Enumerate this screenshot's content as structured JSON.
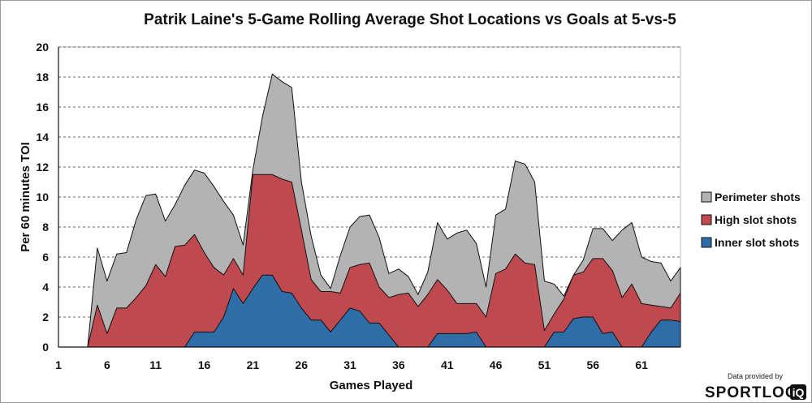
{
  "chart_data": {
    "type": "area",
    "title": "Patrik Laine's 5-Game Rolling Average Shot Locations vs Goals at 5-vs-5",
    "xlabel": "Games Played",
    "ylabel": "Per 60 minutes TOI",
    "ylim": [
      0,
      20
    ],
    "yticks": [
      0,
      2,
      4,
      6,
      8,
      10,
      12,
      14,
      16,
      18,
      20
    ],
    "xlim": [
      1,
      65
    ],
    "xticks": [
      1,
      6,
      11,
      16,
      21,
      26,
      31,
      36,
      41,
      46,
      51,
      56,
      61
    ],
    "grid": "horizontal dashed",
    "legend_position": "right",
    "stacked": true,
    "x": [
      1,
      2,
      3,
      4,
      5,
      6,
      7,
      8,
      9,
      10,
      11,
      12,
      13,
      14,
      15,
      16,
      17,
      18,
      19,
      20,
      21,
      22,
      23,
      24,
      25,
      26,
      27,
      28,
      29,
      30,
      31,
      32,
      33,
      34,
      35,
      36,
      37,
      38,
      39,
      40,
      41,
      42,
      43,
      44,
      45,
      46,
      47,
      48,
      49,
      50,
      51,
      52,
      53,
      54,
      55,
      56,
      57,
      58,
      59,
      60,
      61,
      62,
      63,
      64,
      65
    ],
    "series": [
      {
        "name": "Inner slot shots",
        "color": "#2e6da8",
        "values": [
          0,
          0,
          0,
          0,
          0,
          0,
          0,
          0,
          0,
          0,
          0,
          0,
          0,
          0,
          1.0,
          1.0,
          1.0,
          2.0,
          3.9,
          2.9,
          3.9,
          4.8,
          4.8,
          3.7,
          3.6,
          2.6,
          1.8,
          1.8,
          1.0,
          1.8,
          2.6,
          2.4,
          1.6,
          1.6,
          0.8,
          0,
          0,
          0,
          0,
          0.9,
          0.9,
          0.9,
          0.9,
          1.0,
          0,
          0,
          0,
          0,
          0,
          0,
          0,
          1.0,
          1.0,
          1.9,
          2.0,
          2.0,
          0.9,
          1.0,
          0,
          0,
          0,
          1.0,
          1.8,
          1.8,
          1.7
        ]
      },
      {
        "name": "High slot shots",
        "color": "#c0484f",
        "values": [
          0,
          0,
          0,
          0,
          2.8,
          0.9,
          2.6,
          2.6,
          3.3,
          4.1,
          5.5,
          4.7,
          6.7,
          6.8,
          7.5,
          6.3,
          5.3,
          4.8,
          5.9,
          4.8,
          11.5,
          11.5,
          11.5,
          11.2,
          11.0,
          7.8,
          4.5,
          3.7,
          3.7,
          3.6,
          5.3,
          5.5,
          5.6,
          4.0,
          3.3,
          3.5,
          3.6,
          2.7,
          3.5,
          4.5,
          3.8,
          2.9,
          2.9,
          2.9,
          2.0,
          4.9,
          5.2,
          6.2,
          5.6,
          5.5,
          1.1,
          2.2,
          3.2,
          4.8,
          5.0,
          5.9,
          5.9,
          5.1,
          3.3,
          4.2,
          2.9,
          2.8,
          2.7,
          2.6,
          3.6
        ]
      },
      {
        "name": "Perimeter shots",
        "color": "#b3b3b3",
        "values": [
          0,
          0,
          0,
          0,
          6.6,
          4.4,
          6.2,
          6.3,
          8.5,
          10.1,
          10.2,
          8.4,
          9.5,
          10.8,
          11.8,
          11.6,
          10.7,
          9.7,
          8.8,
          6.8,
          11.8,
          15.4,
          18.2,
          17.7,
          17.3,
          11.0,
          7.4,
          4.8,
          3.9,
          6.1,
          8.0,
          8.7,
          8.8,
          7.3,
          4.9,
          5.2,
          4.7,
          3.5,
          5.0,
          8.3,
          7.2,
          7.6,
          7.8,
          6.9,
          4.0,
          8.8,
          9.2,
          12.4,
          12.2,
          11.0,
          4.4,
          4.2,
          3.4,
          4.8,
          5.8,
          7.9,
          7.9,
          7.1,
          7.8,
          8.3,
          6.0,
          5.7,
          5.6,
          4.4,
          5.3
        ]
      }
    ],
    "legend": [
      "Perimeter shots",
      "High slot shots",
      "Inner slot shots"
    ]
  },
  "credit": {
    "line1": "Data provided by",
    "brand": "SPORTLOG",
    "brand_suffix": "iQ"
  }
}
